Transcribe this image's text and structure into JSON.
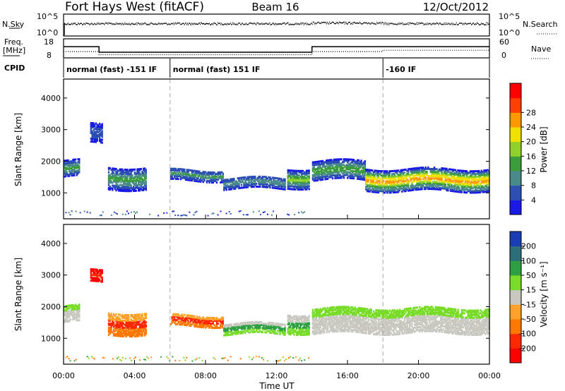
{
  "header": {
    "radar": "Fort Hays West (fitACF)",
    "beam": "Beam 16",
    "date": "12/Oct/2012"
  },
  "top_panels": {
    "nsky_label": "N.Sky",
    "nsearch_label": "N.Search",
    "nsky_ticks": [
      "10^5",
      "10^0"
    ],
    "nsearch_ticks": [
      "10^5",
      "10^0"
    ],
    "freq_label_1": "Freq.",
    "freq_label_2": "[MHz]",
    "freq_ticks": [
      "18",
      "8"
    ],
    "nave_label": "Nave",
    "nave_ticks": [
      "60",
      "0"
    ],
    "cpid_label": "CPID",
    "cpid_segments": [
      {
        "label": "normal (fast) -151 IF",
        "start": 0,
        "end": 6
      },
      {
        "label": "normal (fast) 151 IF",
        "start": 6,
        "end": 18
      },
      {
        "label": "-160 IF",
        "start": 18,
        "end": 24
      }
    ],
    "freq_steps": [
      [
        0,
        14
      ],
      [
        2,
        11
      ],
      [
        14,
        11
      ],
      [
        14,
        14
      ],
      [
        24,
        14
      ]
    ],
    "nave_steps": [
      [
        0,
        20
      ],
      [
        2,
        10
      ],
      [
        14,
        10
      ],
      [
        14,
        20
      ],
      [
        18,
        20
      ],
      [
        18,
        24
      ],
      [
        24,
        24
      ]
    ]
  },
  "chart_data": [
    {
      "type": "heatmap",
      "title": "Power",
      "xlabel": "Time UT",
      "ylabel": "Slant Range [km]",
      "xlim": [
        0,
        24
      ],
      "ylim": [
        180,
        4600
      ],
      "x_ticks": [
        "00:00",
        "04:00",
        "08:00",
        "12:00",
        "16:00",
        "20:00",
        "00:00"
      ],
      "y_ticks": [
        "1000",
        "2000",
        "3000",
        "4000"
      ],
      "colorbar_label": "Power [dB]",
      "colorbar_ticks": [
        "4",
        "8",
        "12",
        "16",
        "20",
        "24",
        "28"
      ],
      "colorbar_colors": [
        "#1a1ae6",
        "#2d4fb4",
        "#4a8a8a",
        "#3c9c3c",
        "#8fd02a",
        "#f0e000",
        "#ff9800",
        "#ff4000",
        "#ff0000"
      ],
      "cpid_boundaries": [
        6,
        18
      ],
      "features": [
        {
          "t": [
            0,
            0.9
          ],
          "center": 1800,
          "width": 250,
          "level": 0.35
        },
        {
          "t": [
            1.5,
            2.2
          ],
          "center": 2900,
          "width": 300,
          "level": 0.15
        },
        {
          "t": [
            2.5,
            4.6
          ],
          "center": 1500,
          "width": 350,
          "level": 0.4
        },
        {
          "t": [
            6,
            9
          ],
          "center": 1600,
          "width": 180,
          "level": 0.35
        },
        {
          "t": [
            9,
            12.5
          ],
          "center": 1350,
          "width": 180,
          "level": 0.3
        },
        {
          "t": [
            12.6,
            13.8
          ],
          "center": 1500,
          "width": 300,
          "level": 0.5
        },
        {
          "t": [
            14,
            17
          ],
          "center": 1750,
          "width": 300,
          "level": 0.45
        },
        {
          "t": [
            17,
            24
          ],
          "center": 1450,
          "width": 350,
          "level": 0.8
        }
      ]
    },
    {
      "type": "heatmap",
      "title": "Velocity",
      "xlabel": "Time UT",
      "ylabel": "Slant Range [km]",
      "xlim": [
        0,
        24
      ],
      "ylim": [
        180,
        4600
      ],
      "x_ticks": [
        "00:00",
        "04:00",
        "08:00",
        "12:00",
        "16:00",
        "20:00",
        "00:00"
      ],
      "y_ticks": [
        "1000",
        "2000",
        "3000",
        "4000"
      ],
      "colorbar_label": "Velocity [m s⁻¹]",
      "colorbar_ticks": [
        "200",
        "100",
        "50",
        "15",
        "-15",
        "-50",
        "-100",
        "-200"
      ],
      "colorbar_colors": [
        "#1a3cb4",
        "#2d6e78",
        "#2ea043",
        "#78dc28",
        "#c8c8c0",
        "#ffa028",
        "#ff7800",
        "#ff2800",
        "#ff0000"
      ],
      "cpid_boundaries": [
        6,
        18
      ],
      "features": [
        {
          "t": [
            0,
            0.9
          ],
          "center": 1800,
          "width": 250,
          "class": "grey"
        },
        {
          "t": [
            1.5,
            2.2
          ],
          "center": 3000,
          "width": 200,
          "class": "red"
        },
        {
          "t": [
            2.5,
            4.6
          ],
          "center": 1500,
          "width": 350,
          "class": "orange"
        },
        {
          "t": [
            6,
            9
          ],
          "center": 1600,
          "width": 180,
          "class": "orange"
        },
        {
          "t": [
            9,
            12.5
          ],
          "center": 1350,
          "width": 180,
          "class": "green"
        },
        {
          "t": [
            12.6,
            13.8
          ],
          "center": 1500,
          "width": 300,
          "class": "green"
        },
        {
          "t": [
            14,
            24
          ],
          "center": 1600,
          "width": 400,
          "class": "grey"
        }
      ]
    }
  ]
}
